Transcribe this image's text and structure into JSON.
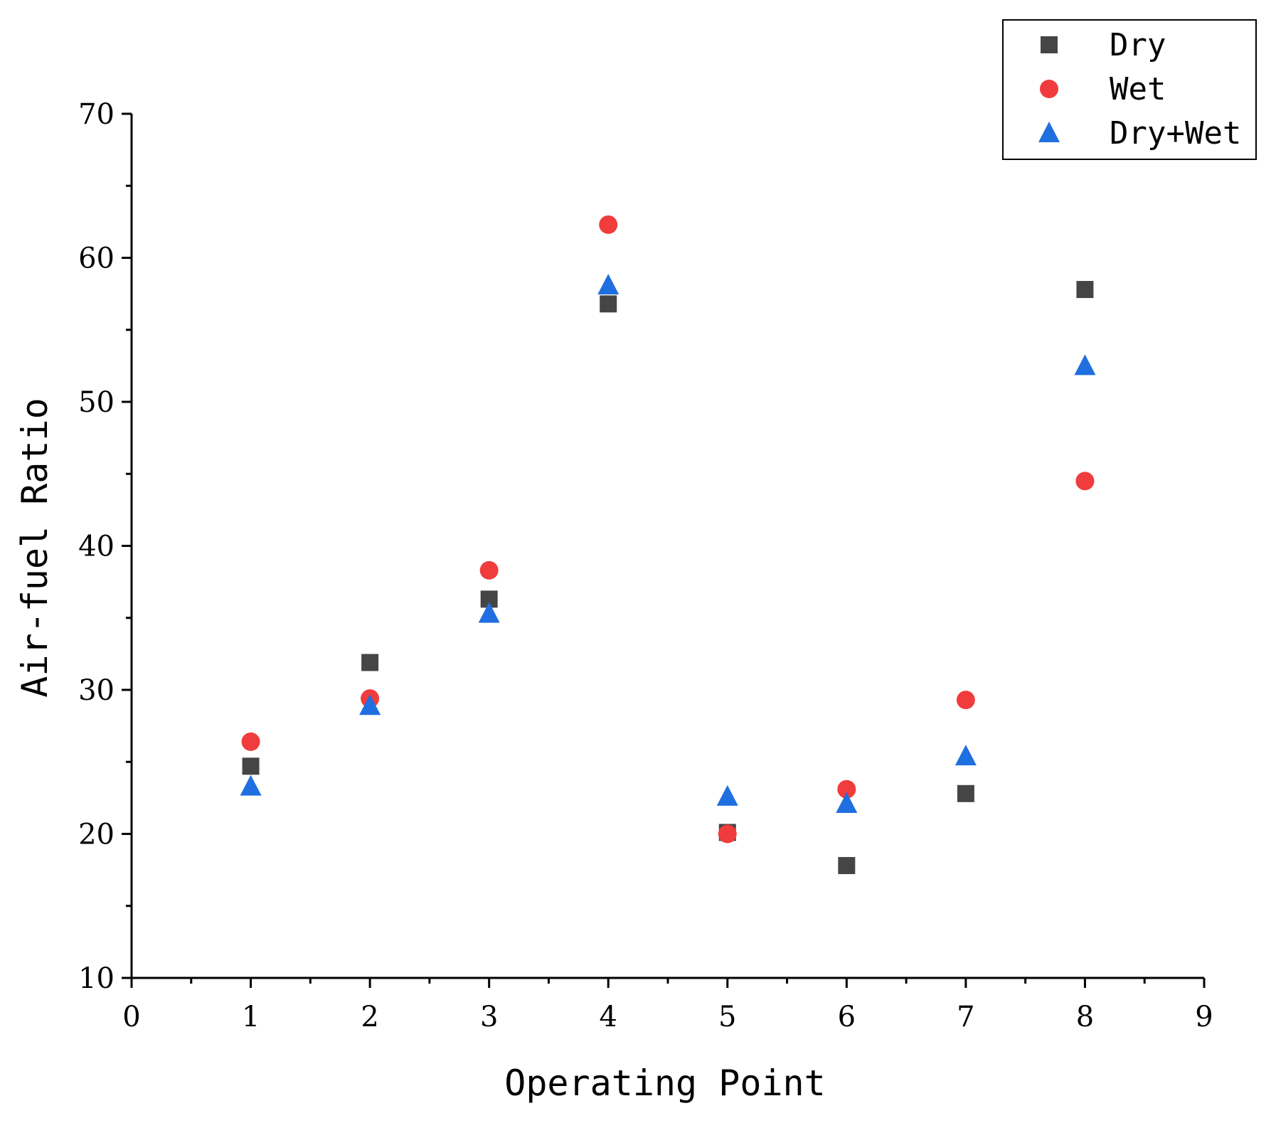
{
  "chart_data": {
    "type": "scatter",
    "title": "",
    "xlabel": "Operating Point",
    "ylabel": "Air-fuel Ratio",
    "xlim": [
      0,
      9
    ],
    "ylim": [
      10,
      70
    ],
    "xticks": [
      0,
      1,
      2,
      3,
      4,
      5,
      6,
      7,
      8,
      9
    ],
    "xtick_labels": [
      "0",
      "1",
      "2",
      "3",
      "4",
      "5",
      "6",
      "7",
      "8",
      "9"
    ],
    "yticks": [
      10,
      20,
      30,
      40,
      50,
      60,
      70
    ],
    "ytick_labels": [
      "10",
      "20",
      "30",
      "40",
      "50",
      "60",
      "70"
    ],
    "legend_position": "top-right",
    "x": [
      1,
      2,
      3,
      4,
      5,
      6,
      7,
      8
    ],
    "series": [
      {
        "name": "Dry",
        "marker": "square",
        "color": "#454545",
        "values": [
          24.7,
          31.9,
          36.3,
          56.8,
          20.1,
          17.8,
          22.8,
          57.8
        ]
      },
      {
        "name": "Wet",
        "marker": "circle",
        "color": "#f03c3c",
        "values": [
          26.4,
          29.4,
          38.3,
          62.3,
          20.0,
          23.1,
          29.3,
          44.5
        ]
      },
      {
        "name": "Dry+Wet",
        "marker": "triangle",
        "color": "#1f6fe0",
        "values": [
          23.3,
          28.9,
          35.3,
          58.1,
          22.6,
          22.1,
          25.4,
          52.5
        ]
      }
    ]
  }
}
